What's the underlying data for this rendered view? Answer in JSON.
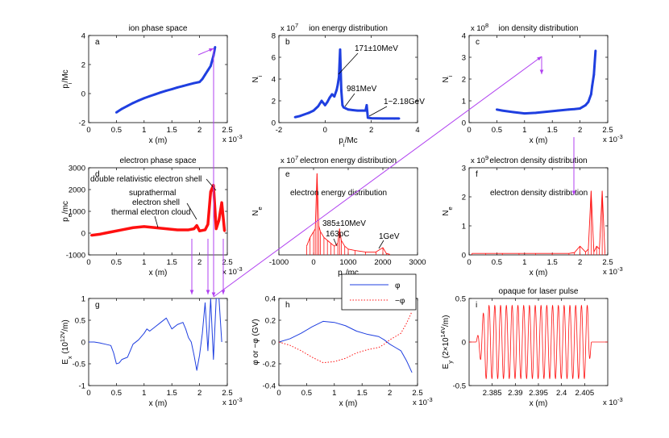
{
  "colors": {
    "blue": "#1f3fe0",
    "red": "#ff1010",
    "magenta": "#b040f0",
    "axis": "#000000"
  },
  "chart_data": [
    {
      "id": "a",
      "type": "scatter",
      "title": "ion phase space",
      "letter": "a",
      "xlabel": "x (m)",
      "ylabel": "p_i/Mc",
      "xlim": [
        0,
        2.5
      ],
      "ylim": [
        -2,
        4
      ],
      "xticks": [
        "0",
        "0.5",
        "1",
        "1.5",
        "2",
        "2.5"
      ],
      "yticks": [
        "-2",
        "0",
        "2",
        "4"
      ],
      "xmultiplier": "x 10^-3",
      "ymultiplier": "",
      "series": [
        {
          "color": "blue",
          "style": "thickline",
          "x": [
            0.5,
            0.6,
            0.7,
            0.8,
            0.9,
            1.0,
            1.1,
            1.2,
            1.3,
            1.4,
            1.5,
            1.6,
            1.7,
            1.8,
            1.9,
            2.0,
            2.05,
            2.1,
            2.15,
            2.2,
            2.25,
            2.28
          ],
          "y": [
            -1.3,
            -1.05,
            -0.85,
            -0.65,
            -0.48,
            -0.32,
            -0.18,
            -0.05,
            0.08,
            0.2,
            0.3,
            0.42,
            0.52,
            0.62,
            0.72,
            0.8,
            1.0,
            1.3,
            1.6,
            1.9,
            2.6,
            3.2
          ]
        }
      ]
    },
    {
      "id": "b",
      "type": "scatter",
      "title": "ion energy distribution",
      "letter": "b",
      "xlabel": "p_i/Mc",
      "ylabel": "N_i",
      "xlim": [
        -2,
        4
      ],
      "ylim": [
        0,
        8
      ],
      "xticks": [
        "-2",
        "0",
        "2",
        "4"
      ],
      "yticks": [
        "0",
        "2",
        "4",
        "6",
        "8"
      ],
      "ymultiplier": "x 10^7",
      "xmultiplier": "",
      "series": [
        {
          "color": "blue",
          "style": "thickline",
          "x": [
            -1.3,
            -1.1,
            -0.9,
            -0.7,
            -0.5,
            -0.3,
            -0.15,
            0,
            0.1,
            0.2,
            0.3,
            0.4,
            0.5,
            0.55,
            0.6,
            0.65,
            0.7,
            0.75,
            0.8,
            0.9,
            1.0,
            1.2,
            1.4,
            1.6,
            1.75,
            1.8,
            1.85,
            2.0,
            2.5,
            3.0,
            3.2
          ],
          "y": [
            0.5,
            0.6,
            0.75,
            0.9,
            1.1,
            1.5,
            2.0,
            1.6,
            1.9,
            2.3,
            2.6,
            2.4,
            3.0,
            3.5,
            4.2,
            6.7,
            3.0,
            1.6,
            1.4,
            1.3,
            1.2,
            1.15,
            1.1,
            1.1,
            1.1,
            1.6,
            0.45,
            0.4,
            0.38,
            0.38,
            0.38
          ]
        }
      ],
      "annotations": [
        "171±10MeV",
        "981MeV",
        "1~2.18GeV"
      ]
    },
    {
      "id": "c",
      "type": "scatter",
      "title": "ion density distribution",
      "letter": "c",
      "xlabel": "x (m)",
      "ylabel": "N_i",
      "xlim": [
        0,
        2.5
      ],
      "ylim": [
        0,
        4
      ],
      "xticks": [
        "0",
        "0.5",
        "1",
        "1.5",
        "2",
        "2.5"
      ],
      "yticks": [
        "0",
        "1",
        "2",
        "3",
        "4"
      ],
      "xmultiplier": "x 10^-3",
      "ymultiplier": "x 10^8",
      "series": [
        {
          "color": "blue",
          "style": "thickline",
          "x": [
            0.5,
            0.6,
            0.8,
            1.0,
            1.2,
            1.4,
            1.6,
            1.8,
            1.9,
            2.0,
            2.1,
            2.15,
            2.2,
            2.22,
            2.25,
            2.28
          ],
          "y": [
            0.6,
            0.55,
            0.48,
            0.42,
            0.45,
            0.5,
            0.55,
            0.6,
            0.62,
            0.65,
            0.8,
            0.95,
            1.3,
            1.7,
            2.2,
            3.3
          ]
        }
      ]
    },
    {
      "id": "d",
      "type": "line",
      "title": "electron phase space",
      "letter": "d",
      "xlabel": "x (m)",
      "ylabel": "p_e/mc",
      "xlim": [
        0,
        2.5
      ],
      "ylim": [
        -1000,
        3000
      ],
      "xticks": [
        "0",
        "0.5",
        "1",
        "1.5",
        "2",
        "2.5"
      ],
      "yticks": [
        "-1000",
        "0",
        "1000",
        "2000",
        "3000"
      ],
      "xmultiplier": "x 10^-3",
      "ymultiplier": "",
      "series": [
        {
          "color": "red",
          "style": "band",
          "x": [
            0.05,
            0.2,
            0.4,
            0.6,
            0.8,
            1.0,
            1.2,
            1.4,
            1.6,
            1.8,
            1.9,
            1.95,
            2.0,
            2.1,
            2.15,
            2.2,
            2.25,
            2.3,
            2.35,
            2.4,
            2.45
          ],
          "y": [
            -100,
            -50,
            50,
            150,
            250,
            300,
            250,
            200,
            150,
            150,
            200,
            350,
            100,
            150,
            400,
            1900,
            2200,
            200,
            600,
            1400,
            100
          ]
        }
      ],
      "annotations": [
        "double relativistic electron shell",
        "suprathermal",
        "electron shell",
        "thermal electron cloud"
      ]
    },
    {
      "id": "e",
      "type": "line",
      "title": "electron energy distribution",
      "letter": "e",
      "xlabel": "p_e/mc",
      "ylabel": "N_e",
      "xlim": [
        -1000,
        3000
      ],
      "ylim": [
        0,
        3
      ],
      "xticks": [
        "-1000",
        "0",
        "1000",
        "2000",
        "3000"
      ],
      "yticks": [],
      "xmultiplier": "",
      "ymultiplier": "x 10^7",
      "series": [
        {
          "color": "red",
          "style": "noisy",
          "x": [
            -200,
            -100,
            0,
            50,
            100,
            150,
            200,
            300,
            400,
            500,
            600,
            700,
            750,
            800,
            900,
            1000,
            1200,
            1500,
            1800,
            2000,
            2100,
            2200
          ],
          "y": [
            0.3,
            0.6,
            0.8,
            0.9,
            2.8,
            1.0,
            0.8,
            0.6,
            0.5,
            0.4,
            0.3,
            0.4,
            0.9,
            0.5,
            0.3,
            0.2,
            0.15,
            0.1,
            0.1,
            0.25,
            0.05,
            0.02
          ]
        }
      ],
      "annotations": [
        "385±10MeV",
        "163pC",
        "1GeV"
      ]
    },
    {
      "id": "f",
      "type": "line",
      "title": "electron density distribution",
      "letter": "f",
      "xlabel": "x (m)",
      "ylabel": "N_e",
      "xlim": [
        0,
        2.5
      ],
      "ylim": [
        0,
        3
      ],
      "xticks": [
        "0",
        "0.5",
        "1",
        "1.5",
        "2",
        "2.5"
      ],
      "yticks": [
        "0",
        "1",
        "2",
        "3"
      ],
      "xmultiplier": "x 10^-3",
      "ymultiplier": "x 10^9",
      "series": [
        {
          "color": "red",
          "style": "noisy",
          "x": [
            0.05,
            0.3,
            0.6,
            0.9,
            1.2,
            1.5,
            1.8,
            1.9,
            2.0,
            2.1,
            2.15,
            2.2,
            2.25,
            2.3,
            2.35,
            2.4,
            2.45
          ],
          "y": [
            0.05,
            0.05,
            0.05,
            0.05,
            0.05,
            0.05,
            0.05,
            0.08,
            0.3,
            0.1,
            0.2,
            2.2,
            0.1,
            0.3,
            0.2,
            2.2,
            0.05
          ]
        }
      ]
    },
    {
      "id": "g",
      "type": "line",
      "title": "",
      "letter": "g",
      "xlabel": "x (m)",
      "ylabel": "E_x (10^12V/m)",
      "xlim": [
        0,
        2.5
      ],
      "ylim": [
        -1,
        1
      ],
      "xticks": [
        "0",
        "0.5",
        "1",
        "1.5",
        "2",
        "2.5"
      ],
      "yticks": [
        "-1",
        "-0.5",
        "0",
        "0.5",
        "1"
      ],
      "xmultiplier": "x 10^-3",
      "ymultiplier": "",
      "series": [
        {
          "color": "blue",
          "style": "line",
          "x": [
            0.0,
            0.1,
            0.2,
            0.3,
            0.4,
            0.45,
            0.5,
            0.55,
            0.6,
            0.7,
            0.8,
            0.9,
            1.0,
            1.05,
            1.1,
            1.2,
            1.3,
            1.4,
            1.5,
            1.6,
            1.7,
            1.75,
            1.8,
            1.85,
            1.9,
            1.95,
            2.0,
            2.05,
            2.1,
            2.15,
            2.2,
            2.25,
            2.3,
            2.35,
            2.4
          ],
          "y": [
            0.0,
            0.0,
            -0.02,
            -0.05,
            -0.08,
            -0.25,
            -0.5,
            -0.48,
            -0.4,
            -0.35,
            -0.05,
            0.05,
            0.2,
            0.3,
            0.25,
            0.35,
            0.45,
            0.55,
            0.3,
            0.4,
            0.45,
            0.3,
            0.1,
            0.0,
            -0.3,
            -0.65,
            -0.3,
            0.2,
            0.9,
            -0.2,
            1.0,
            -0.4,
            1.0,
            1.0,
            0.0
          ]
        }
      ]
    },
    {
      "id": "h",
      "type": "line",
      "title": "",
      "letter": "h",
      "xlabel": "x (m)",
      "ylabel": "φ or −φ (GV)",
      "xlim": [
        0,
        2.5
      ],
      "ylim": [
        -0.4,
        0.4
      ],
      "xticks": [
        "0",
        "0.5",
        "1",
        "1.5",
        "2",
        "2.5"
      ],
      "yticks": [
        "-0.4",
        "-0.2",
        "0",
        "0.2",
        "0.4"
      ],
      "xmultiplier": "x 10^-3",
      "ymultiplier": "",
      "legend": [
        "φ",
        "−φ"
      ],
      "series": [
        {
          "name": "φ",
          "color": "blue",
          "style": "line",
          "x": [
            0,
            0.2,
            0.4,
            0.6,
            0.8,
            1.0,
            1.2,
            1.4,
            1.6,
            1.8,
            1.9,
            2.0,
            2.1,
            2.2,
            2.3,
            2.4
          ],
          "y": [
            0,
            0.03,
            0.08,
            0.14,
            0.19,
            0.18,
            0.15,
            0.1,
            0.07,
            0.05,
            0.02,
            -0.02,
            -0.05,
            -0.08,
            -0.17,
            -0.28
          ]
        },
        {
          "name": "−φ",
          "color": "red",
          "style": "dotted",
          "x": [
            0,
            0.2,
            0.4,
            0.6,
            0.8,
            1.0,
            1.2,
            1.4,
            1.6,
            1.8,
            1.9,
            2.0,
            2.1,
            2.2,
            2.3,
            2.4
          ],
          "y": [
            0,
            -0.03,
            -0.08,
            -0.14,
            -0.19,
            -0.18,
            -0.15,
            -0.1,
            -0.07,
            -0.05,
            -0.02,
            0.02,
            0.05,
            0.08,
            0.17,
            0.28
          ]
        }
      ]
    },
    {
      "id": "i",
      "type": "line",
      "title": "opaque for laser pulse",
      "letter": "i",
      "xlabel": "x (m)",
      "ylabel": "E_y (2×10^14V/m)",
      "xlim": [
        2.38,
        2.41
      ],
      "ylim": [
        -0.5,
        0.5
      ],
      "xticks": [
        "2.385",
        "2.39",
        "2.395",
        "2.4",
        "2.405"
      ],
      "yticks": [
        "-0.5",
        "0",
        "0.5"
      ],
      "xmultiplier": "x 10^-3",
      "ymultiplier": "",
      "wave": {
        "start": 2.3815,
        "end": 2.4065,
        "cycles": 20,
        "amplitude": 0.42
      },
      "series": [
        {
          "color": "red",
          "style": "wave"
        }
      ]
    }
  ]
}
